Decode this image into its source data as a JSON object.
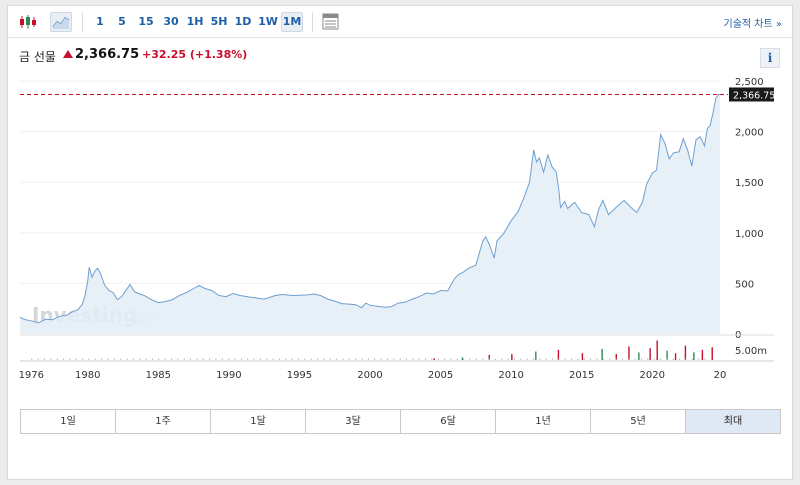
{
  "toolbar": {
    "timeframes": [
      "1",
      "5",
      "15",
      "30",
      "1H",
      "5H",
      "1D",
      "1W",
      "1M"
    ],
    "active_timeframe": "1M",
    "tech_link": "기술적 차트 »"
  },
  "instrument": {
    "name": "금 선물",
    "price": "2,366.75",
    "change": "+32.25",
    "change_pct": "(+1.38%)",
    "info_label": "i"
  },
  "colors": {
    "up": "#c8102e",
    "line": "#6f9fd0",
    "area_fill": "#e3edf6",
    "link": "#1f5fa8"
  },
  "watermark": {
    "brand": "Investing",
    "suffix": ".com"
  },
  "chart_data": {
    "type": "area",
    "title": "",
    "xlabel": "",
    "ylabel": "",
    "x_tick_labels": [
      "1976",
      "1980",
      "1985",
      "1990",
      "1995",
      "2000",
      "2005",
      "2010",
      "2015",
      "2020",
      "20"
    ],
    "y_tick_labels": [
      "2,500",
      "2,000",
      "1,500",
      "1,000",
      "500",
      "0"
    ],
    "ylim": [
      0,
      2500
    ],
    "xlim": [
      1975.2,
      2024.8
    ],
    "last_value_label": "2,366.75",
    "volume_axis_label": "5.00m",
    "grid": true,
    "x": [
      1975.2,
      1975.6,
      1976.0,
      1976.5,
      1977.0,
      1977.5,
      1978.0,
      1978.5,
      1979.0,
      1979.3,
      1979.6,
      1979.8,
      1980.0,
      1980.1,
      1980.3,
      1980.5,
      1980.7,
      1980.9,
      1981.2,
      1981.5,
      1981.8,
      1982.1,
      1982.4,
      1982.7,
      1983.0,
      1983.3,
      1983.6,
      1984.0,
      1984.5,
      1985.0,
      1985.5,
      1986.0,
      1986.5,
      1987.0,
      1987.5,
      1987.9,
      1988.3,
      1988.8,
      1989.3,
      1989.8,
      1990.3,
      1990.8,
      1991.5,
      1992.5,
      1993.3,
      1993.8,
      1994.5,
      1995.5,
      1996.0,
      1996.5,
      1997.0,
      1997.5,
      1998.0,
      1998.5,
      1999.0,
      1999.4,
      1999.7,
      2000.0,
      2000.5,
      2001.0,
      2001.5,
      2002.0,
      2002.5,
      2003.0,
      2003.5,
      2004.0,
      2004.5,
      2005.0,
      2005.5,
      2006.0,
      2006.3,
      2006.6,
      2007.0,
      2007.5,
      2008.0,
      2008.2,
      2008.5,
      2008.8,
      2009.0,
      2009.5,
      2010.0,
      2010.5,
      2011.0,
      2011.3,
      2011.6,
      2011.8,
      2012.0,
      2012.3,
      2012.6,
      2012.9,
      2013.2,
      2013.4,
      2013.5,
      2013.8,
      2014.0,
      2014.5,
      2015.0,
      2015.5,
      2015.9,
      2016.2,
      2016.5,
      2016.9,
      2017.5,
      2018.0,
      2018.5,
      2018.9,
      2019.3,
      2019.6,
      2020.0,
      2020.3,
      2020.6,
      2020.9,
      2021.2,
      2021.5,
      2021.9,
      2022.2,
      2022.5,
      2022.8,
      2023.1,
      2023.4,
      2023.7,
      2023.9,
      2024.1,
      2024.3,
      2024.5,
      2024.7,
      2024.8
    ],
    "values": [
      165,
      140,
      130,
      110,
      145,
      140,
      175,
      185,
      225,
      240,
      290,
      375,
      520,
      660,
      560,
      620,
      650,
      600,
      480,
      430,
      410,
      340,
      370,
      430,
      490,
      420,
      400,
      380,
      340,
      310,
      320,
      340,
      380,
      410,
      450,
      480,
      450,
      430,
      380,
      370,
      400,
      380,
      365,
      345,
      380,
      390,
      380,
      385,
      395,
      380,
      345,
      325,
      300,
      295,
      290,
      260,
      305,
      285,
      275,
      265,
      270,
      305,
      315,
      345,
      370,
      405,
      395,
      430,
      425,
      550,
      590,
      610,
      650,
      680,
      920,
      960,
      870,
      750,
      920,
      1000,
      1120,
      1210,
      1380,
      1500,
      1820,
      1700,
      1740,
      1600,
      1770,
      1650,
      1600,
      1400,
      1250,
      1310,
      1240,
      1300,
      1200,
      1180,
      1060,
      1230,
      1320,
      1180,
      1260,
      1320,
      1250,
      1200,
      1300,
      1480,
      1590,
      1620,
      1970,
      1880,
      1730,
      1790,
      1800,
      1930,
      1820,
      1660,
      1920,
      1950,
      1860,
      2030,
      2060,
      2180,
      2330,
      2366.75,
      2366.75
    ],
    "volume_x": [
      2004.5,
      2006.5,
      2008.4,
      2010.0,
      2011.7,
      2013.3,
      2015.0,
      2016.4,
      2017.4,
      2018.3,
      2019.0,
      2019.8,
      2020.3,
      2021.0,
      2021.6,
      2022.3,
      2022.9,
      2023.5,
      2024.2
    ],
    "volume_values": [
      0.2,
      0.3,
      0.6,
      0.7,
      1.0,
      1.2,
      0.8,
      1.3,
      0.7,
      1.6,
      0.9,
      1.4,
      2.3,
      1.1,
      0.8,
      1.7,
      0.9,
      1.2,
      1.5
    ]
  },
  "range_buttons": [
    "1일",
    "1주",
    "1달",
    "3달",
    "6달",
    "1년",
    "5년",
    "최대"
  ],
  "active_range": "최대"
}
